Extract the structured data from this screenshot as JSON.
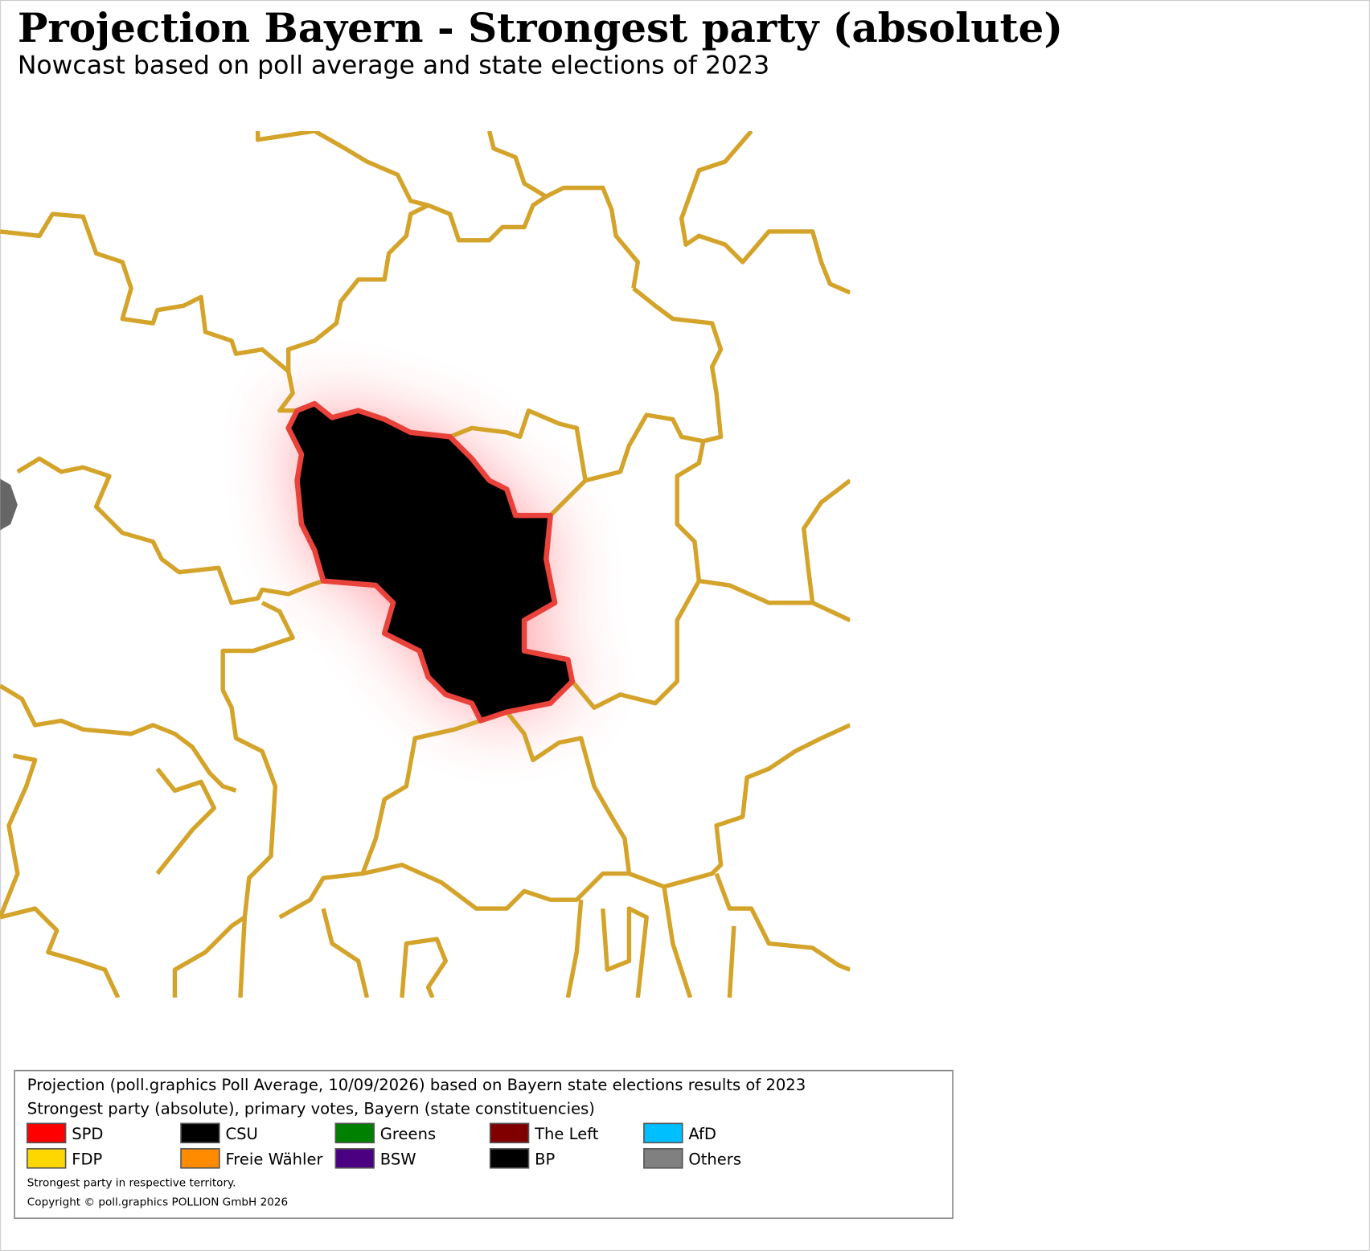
{
  "header": {
    "title": "Projection Bayern - Strongest party (absolute)",
    "subtitle": "Nowcast based on poll average and state elections of 2023"
  },
  "legend": {
    "lines": [
      "Projection (poll.graphics Poll Average, 10/09/2026) based on Bayern state elections results of 2023",
      "Strongest party (absolute), primary votes, Bayern (state constituencies)"
    ],
    "entries": [
      {
        "name": "SPD",
        "color": "#ff0000"
      },
      {
        "name": "CSU",
        "color": "#000000"
      },
      {
        "name": "Greens",
        "color": "#008000"
      },
      {
        "name": "The Left",
        "color": "#800000"
      },
      {
        "name": "AfD",
        "color": "#00bfff"
      },
      {
        "name": "FDP",
        "color": "#ffd700"
      },
      {
        "name": "Freie Wähler",
        "color": "#ff8c00"
      },
      {
        "name": "BSW",
        "color": "#4b0082"
      },
      {
        "name": "BP",
        "color": "#000000"
      },
      {
        "name": "Others",
        "color": "#808080"
      }
    ],
    "notes": [
      "Strongest party in respective territory.",
      "Copyright © poll.graphics POLLION GmbH 2026"
    ]
  }
}
